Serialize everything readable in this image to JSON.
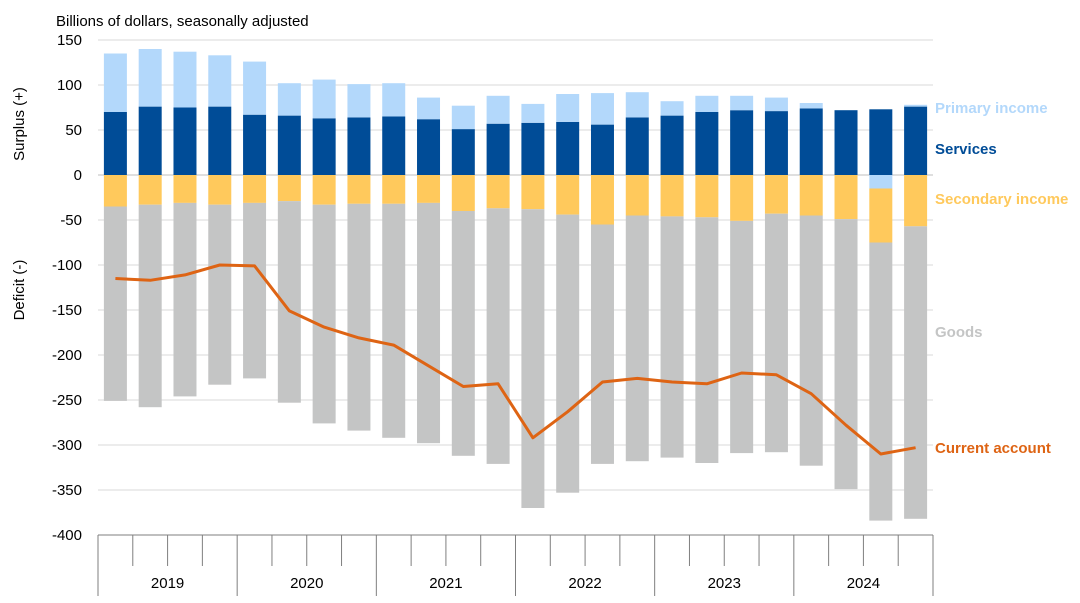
{
  "chart_data": {
    "type": "bar",
    "subtitle": "Billions of dollars, seasonally adjusted",
    "ylabel_top": "Surplus (+)",
    "ylabel_bottom": "Deficit (-)",
    "ylim": [
      -400,
      150
    ],
    "yticks": [
      150,
      100,
      50,
      0,
      -50,
      -100,
      -150,
      -200,
      -250,
      -300,
      -350,
      -400
    ],
    "years": [
      "2019",
      "2020",
      "2021",
      "2022",
      "2023",
      "2024"
    ],
    "quarters": [
      "2019Q1",
      "2019Q2",
      "2019Q3",
      "2019Q4",
      "2020Q1",
      "2020Q2",
      "2020Q3",
      "2020Q4",
      "2021Q1",
      "2021Q2",
      "2021Q3",
      "2021Q4",
      "2022Q1",
      "2022Q2",
      "2022Q3",
      "2022Q4",
      "2023Q1",
      "2023Q2",
      "2023Q3",
      "2023Q4",
      "2024Q1",
      "2024Q2",
      "2024Q3",
      "2024Q4"
    ],
    "series": [
      {
        "name": "Services",
        "color": "#004C97",
        "values": [
          70,
          76,
          75,
          76,
          67,
          66,
          63,
          64,
          65,
          62,
          51,
          57,
          58,
          59,
          56,
          64,
          66,
          70,
          72,
          71,
          74,
          72,
          73,
          76
        ]
      },
      {
        "name": "Primary income",
        "color": "#B3D8FB",
        "values": [
          65,
          64,
          62,
          57,
          59,
          36,
          43,
          37,
          37,
          24,
          26,
          31,
          21,
          31,
          35,
          28,
          16,
          18,
          16,
          15,
          6,
          0,
          -15,
          2
        ]
      },
      {
        "name": "Secondary income",
        "color": "#FFC95C",
        "values": [
          -35,
          -33,
          -31,
          -33,
          -31,
          -29,
          -33,
          -32,
          -32,
          -31,
          -40,
          -37,
          -38,
          -44,
          -55,
          -45,
          -46,
          -47,
          -51,
          -43,
          -45,
          -49,
          -60,
          -57
        ]
      },
      {
        "name": "Goods",
        "color": "#C4C5C5",
        "values": [
          -216,
          -225,
          -215,
          -200,
          -195,
          -224,
          -243,
          -252,
          -260,
          -267,
          -272,
          -284,
          -332,
          -309,
          -266,
          -273,
          -268,
          -273,
          -258,
          -265,
          -278,
          -300,
          -309,
          -325
        ]
      },
      {
        "name": "Current account",
        "color": "#DE6414",
        "type": "line",
        "values": [
          -115,
          -117,
          -111,
          -100,
          -101,
          -151,
          -169,
          -181,
          -189,
          -212,
          -235,
          -232,
          -292,
          -263,
          -230,
          -226,
          -230,
          -232,
          -220,
          -222,
          -243,
          -278,
          -310,
          -303
        ]
      }
    ],
    "legend": {
      "primary_income": "Primary income",
      "services": "Services",
      "secondary_income": "Secondary income",
      "goods": "Goods",
      "current_account": "Current account"
    }
  }
}
